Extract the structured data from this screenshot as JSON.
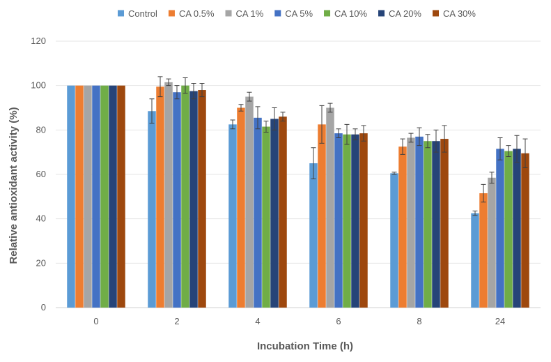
{
  "chart_data": {
    "type": "bar",
    "title": "",
    "xlabel": "Incubation Time (h)",
    "ylabel": "Relative antioxidant activity (%)",
    "ylim": [
      0,
      120
    ],
    "yticks": [
      "0",
      "20",
      "40",
      "60",
      "80",
      "100",
      "120"
    ],
    "categories": [
      "0",
      "2",
      "4",
      "6",
      "8",
      "24"
    ],
    "grid": true,
    "legend_position": "top",
    "series": [
      {
        "name": "Control",
        "color": "#5b9bd5",
        "values": [
          100,
          88.5,
          82.5,
          65,
          60.5,
          42.5
        ],
        "errors": [
          0,
          5.5,
          2,
          7,
          0.5,
          1
        ]
      },
      {
        "name": "CA 0.5%",
        "color": "#ed7d31",
        "values": [
          100,
          99.5,
          90,
          82.5,
          72.5,
          51.5
        ],
        "errors": [
          0,
          4.5,
          1.5,
          8.5,
          3.5,
          4
        ]
      },
      {
        "name": "CA 1%",
        "color": "#a5a5a5",
        "values": [
          100,
          101.5,
          95,
          90,
          76.5,
          58.5
        ],
        "errors": [
          0,
          1.5,
          2,
          2,
          2,
          2.5
        ]
      },
      {
        "name": "CA 5%",
        "color": "#4472c4",
        "values": [
          100,
          97,
          85.5,
          78.5,
          77,
          71.5
        ],
        "errors": [
          0,
          3,
          5,
          2,
          4,
          5
        ]
      },
      {
        "name": "CA 10%",
        "color": "#70ad47",
        "values": [
          100,
          100,
          81.5,
          78,
          75,
          70.5
        ],
        "errors": [
          0,
          3.5,
          2.5,
          4.5,
          3,
          2.5
        ]
      },
      {
        "name": "CA 20%",
        "color": "#264478",
        "values": [
          100,
          97.5,
          85,
          78,
          75,
          71.5
        ],
        "errors": [
          0,
          3.5,
          5,
          2.5,
          5,
          6
        ]
      },
      {
        "name": "CA 30%",
        "color": "#9e480e",
        "values": [
          100,
          98,
          86,
          78.5,
          76,
          69.5
        ],
        "errors": [
          0,
          3,
          2,
          3.5,
          6,
          6.5
        ]
      }
    ]
  }
}
